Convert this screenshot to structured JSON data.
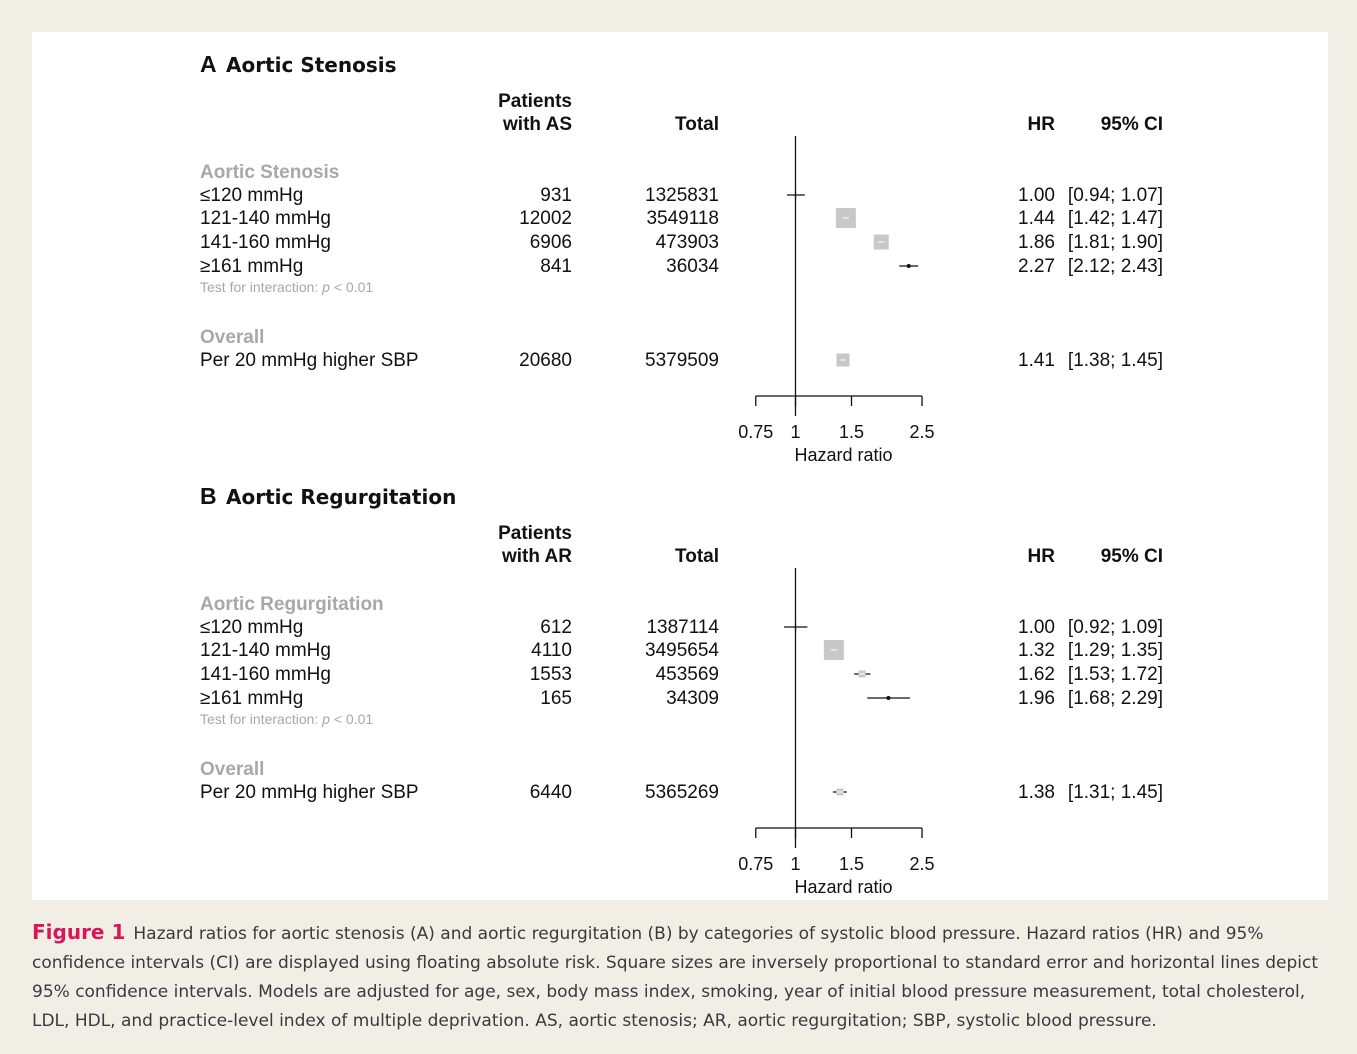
{
  "caption": {
    "label": "Figure 1",
    "text": "Hazard ratios for aortic stenosis (A) and aortic regurgitation (B) by categories of systolic blood pressure. Hazard ratios (HR) and 95% confidence intervals (CI) are displayed using floating absolute risk. Square sizes are inversely proportional to standard error and horizontal lines depict 95% confidence intervals. Models are adjusted for age, sex, body mass index, smoking, year of initial blood pressure measurement, total cholesterol, LDL, HDL, and practice-level index of multiple deprivation. AS, aortic stenosis; AR, aortic regurgitation; SBP, systolic blood pressure."
  },
  "colors": {
    "caption_label": "#d8175a",
    "square": "#c8c8c8",
    "muted_text": "#a8a8a8",
    "page_bg": "#f1efe5"
  },
  "chart_data": [
    {
      "type": "forest",
      "panel_letter": "A",
      "title": "Aortic Stenosis",
      "headers": {
        "patients_line1": "Patients",
        "patients_line2": "with AS",
        "total": "Total",
        "hr": "HR",
        "ci": "95% CI"
      },
      "group_label": "Aortic Stenosis",
      "rows": [
        {
          "label": "≤120 mmHg",
          "patients": "931",
          "total": "1325831",
          "hr": 1.0,
          "lo": 0.94,
          "hi": 1.07,
          "hr_text": "1.00",
          "ci_text": "[0.94; 1.07]",
          "square": 0
        },
        {
          "label": "121-140 mmHg",
          "patients": "12002",
          "total": "3549118",
          "hr": 1.44,
          "lo": 1.42,
          "hi": 1.47,
          "hr_text": "1.44",
          "ci_text": "[1.42; 1.47]",
          "square": 20
        },
        {
          "label": "141-160 mmHg",
          "patients": "6906",
          "total": "473903",
          "hr": 1.86,
          "lo": 1.81,
          "hi": 1.9,
          "hr_text": "1.86",
          "ci_text": "[1.81; 1.90]",
          "square": 15
        },
        {
          "label": "≥161 mmHg",
          "patients": "841",
          "total": "36034",
          "hr": 2.27,
          "lo": 2.12,
          "hi": 2.43,
          "hr_text": "2.27",
          "ci_text": "[2.12; 2.43]",
          "square": 3
        }
      ],
      "interaction_prefix": "Test for interaction: ",
      "interaction_p": "p",
      "interaction_suffix": " < 0.01",
      "overall_label": "Overall",
      "overall": {
        "label": "Per 20 mmHg higher SBP",
        "patients": "20680",
        "total": "5379509",
        "hr": 1.41,
        "lo": 1.38,
        "hi": 1.45,
        "hr_text": "1.41",
        "ci_text": "[1.38; 1.45]",
        "square": 13
      },
      "x_ticks": [
        0.75,
        1,
        1.5,
        2.5
      ],
      "x_tick_labels": [
        "0.75",
        "1",
        "1.5",
        "2.5"
      ],
      "xlabel": "Hazard ratio",
      "xscale": "log",
      "reference": 1
    },
    {
      "type": "forest",
      "panel_letter": "B",
      "title": "Aortic Regurgitation",
      "headers": {
        "patients_line1": "Patients",
        "patients_line2": "with AR",
        "total": "Total",
        "hr": "HR",
        "ci": "95% CI"
      },
      "group_label": "Aortic Regurgitation",
      "rows": [
        {
          "label": "≤120 mmHg",
          "patients": "612",
          "total": "1387114",
          "hr": 1.0,
          "lo": 0.92,
          "hi": 1.09,
          "hr_text": "1.00",
          "ci_text": "[0.92; 1.09]",
          "square": 0
        },
        {
          "label": "121-140 mmHg",
          "patients": "4110",
          "total": "3495654",
          "hr": 1.32,
          "lo": 1.29,
          "hi": 1.35,
          "hr_text": "1.32",
          "ci_text": "[1.29; 1.35]",
          "square": 20
        },
        {
          "label": "141-160 mmHg",
          "patients": "1553",
          "total": "453569",
          "hr": 1.62,
          "lo": 1.53,
          "hi": 1.72,
          "hr_text": "1.62",
          "ci_text": "[1.53; 1.72]",
          "square": 7
        },
        {
          "label": "≥161 mmHg",
          "patients": "165",
          "total": "34309",
          "hr": 1.96,
          "lo": 1.68,
          "hi": 2.29,
          "hr_text": "1.96",
          "ci_text": "[1.68; 2.29]",
          "square": 2
        }
      ],
      "interaction_prefix": "Test for interaction: ",
      "interaction_p": "p",
      "interaction_suffix": " < 0.01",
      "overall_label": "Overall",
      "overall": {
        "label": "Per 20 mmHg higher SBP",
        "patients": "6440",
        "total": "5365269",
        "hr": 1.38,
        "lo": 1.31,
        "hi": 1.45,
        "hr_text": "1.38",
        "ci_text": "[1.31; 1.45]",
        "square": 7
      },
      "x_ticks": [
        0.75,
        1,
        1.5,
        2.5
      ],
      "x_tick_labels": [
        "0.75",
        "1",
        "1.5",
        "2.5"
      ],
      "xlabel": "Hazard ratio",
      "xscale": "log",
      "reference": 1
    }
  ]
}
